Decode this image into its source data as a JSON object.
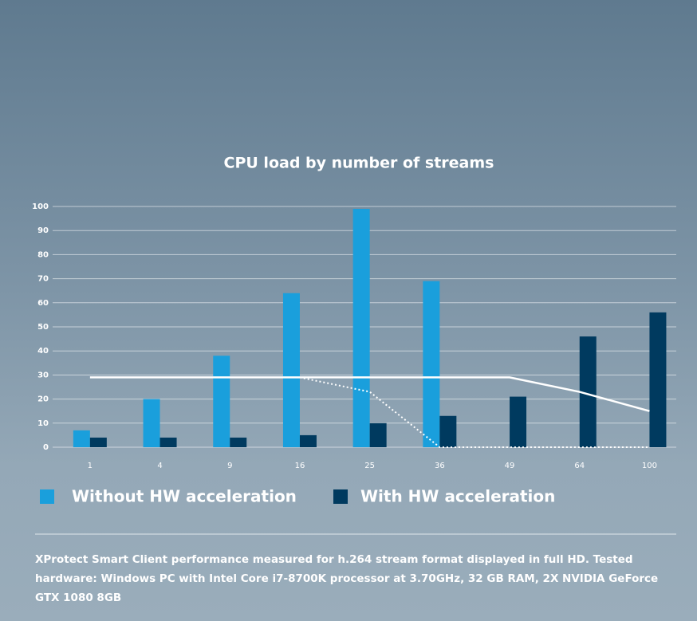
{
  "chart_data": {
    "type": "bar",
    "title": "CPU load by number of streams",
    "categories": [
      "1",
      "4",
      "9",
      "16",
      "25",
      "36",
      "49",
      "64",
      "100"
    ],
    "ylim": [
      0,
      100
    ],
    "yticks": [
      0,
      10,
      20,
      30,
      40,
      50,
      60,
      70,
      80,
      90,
      100
    ],
    "grid": true,
    "series": [
      {
        "name": "Without HW acceleration",
        "color": "#1a9fdc",
        "values": [
          7,
          20,
          38,
          64,
          99,
          69,
          null,
          null,
          null
        ]
      },
      {
        "name": "With HW acceleration",
        "color": "#003a5f",
        "values": [
          4,
          4,
          4,
          5,
          10,
          13,
          21,
          46,
          56
        ]
      },
      {
        "type": "line",
        "color": "#ffffff",
        "dashed": false,
        "values": [
          29,
          29,
          29,
          29,
          29,
          29,
          29,
          23,
          15
        ]
      },
      {
        "type": "line",
        "color": "#ffffff",
        "dashed": true,
        "values": [
          null,
          null,
          null,
          29,
          23,
          0,
          0,
          0,
          0
        ]
      }
    ],
    "footnote": "XProtect Smart Client performance measured for h.264 stream format displayed in full HD. Tested hardware: Windows PC with Intel Core i7-8700K processor at 3.70GHz, 32 GB RAM, 2X NVIDIA GeForce GTX 1080 8GB"
  }
}
